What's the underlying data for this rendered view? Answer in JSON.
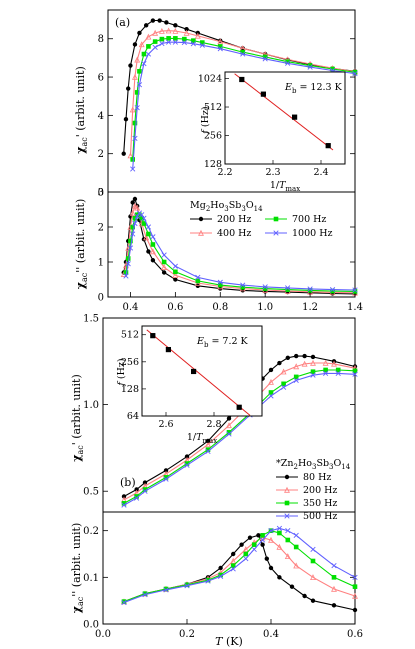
{
  "chart_data": [
    {
      "id": "p1",
      "type": "scatter",
      "panel_label": "(a)",
      "ylabel_main": "χ",
      "ylabel_sub": "ac",
      "ylabel_suffix": "' (arbit. unit)",
      "xlim": [
        0.3,
        1.4
      ],
      "ylim": [
        0,
        9.5
      ],
      "yticks": [
        "0",
        "2",
        "4",
        "6",
        "8"
      ],
      "ytick_values": [
        0,
        2,
        4,
        6,
        8
      ],
      "series": [
        {
          "name": "200 Hz",
          "color": "#000000",
          "marker": "circle-filled",
          "x": [
            0.37,
            0.38,
            0.39,
            0.4,
            0.42,
            0.44,
            0.47,
            0.5,
            0.53,
            0.56,
            0.6,
            0.65,
            0.7,
            0.8,
            0.9,
            1.0,
            1.1,
            1.2,
            1.3,
            1.4
          ],
          "y": [
            2.0,
            3.8,
            5.4,
            6.6,
            7.7,
            8.3,
            8.7,
            8.95,
            8.95,
            8.85,
            8.7,
            8.5,
            8.3,
            7.9,
            7.5,
            7.2,
            6.9,
            6.65,
            6.45,
            6.3
          ]
        },
        {
          "name": "400 Hz",
          "color": "#ff8080",
          "marker": "triangle-open",
          "x": [
            0.4,
            0.41,
            0.42,
            0.43,
            0.45,
            0.48,
            0.51,
            0.54,
            0.57,
            0.6,
            0.65,
            0.7,
            0.8,
            0.9,
            1.0,
            1.1,
            1.2,
            1.3,
            1.4
          ],
          "y": [
            1.9,
            4.3,
            6.0,
            6.9,
            7.7,
            8.1,
            8.3,
            8.4,
            8.42,
            8.4,
            8.3,
            8.15,
            7.85,
            7.5,
            7.2,
            6.92,
            6.68,
            6.46,
            6.28
          ]
        },
        {
          "name": "700 Hz",
          "color": "#00e000",
          "marker": "square-filled",
          "x": [
            0.41,
            0.42,
            0.43,
            0.44,
            0.46,
            0.48,
            0.51,
            0.54,
            0.57,
            0.6,
            0.64,
            0.68,
            0.72,
            0.8,
            0.9,
            1.0,
            1.1,
            1.2,
            1.3,
            1.4
          ],
          "y": [
            1.7,
            3.6,
            5.2,
            6.3,
            7.2,
            7.6,
            7.85,
            7.98,
            8.02,
            8.02,
            7.98,
            7.9,
            7.8,
            7.6,
            7.3,
            7.05,
            6.8,
            6.6,
            6.42,
            6.25
          ]
        },
        {
          "name": "1000 Hz",
          "color": "#6060ff",
          "marker": "x-open",
          "x": [
            0.41,
            0.42,
            0.43,
            0.44,
            0.46,
            0.48,
            0.51,
            0.54,
            0.57,
            0.6,
            0.64,
            0.68,
            0.72,
            0.8,
            0.9,
            1.0,
            1.1,
            1.2,
            1.3,
            1.4
          ],
          "y": [
            1.2,
            2.8,
            4.4,
            5.6,
            6.7,
            7.2,
            7.55,
            7.75,
            7.82,
            7.82,
            7.8,
            7.74,
            7.66,
            7.48,
            7.2,
            6.95,
            6.72,
            6.52,
            6.34,
            6.18
          ]
        }
      ]
    },
    {
      "id": "p1_inset",
      "type": "scatter",
      "label_E_main": "E",
      "label_E_sub": "b",
      "label_E_value": " = 12.3 K",
      "ylabel_italic": "f",
      "ylabel_unit": " (Hz)",
      "xlabel_main": "1/",
      "xlabel_italic": "T",
      "xlabel_sub": "max",
      "xlim": [
        2.2,
        2.45
      ],
      "ylog": true,
      "ylim": [
        128,
        1200
      ],
      "xticks": [
        "2.2",
        "2.3",
        "2.4"
      ],
      "xtick_values": [
        2.2,
        2.3,
        2.4
      ],
      "yticks": [
        "128",
        "256",
        "512",
        "1024"
      ],
      "ytick_values": [
        128,
        256,
        512,
        1024
      ],
      "points": {
        "x": [
          2.235,
          2.28,
          2.345,
          2.415
        ],
        "y": [
          1000,
          700,
          400,
          200
        ]
      },
      "fit": {
        "x": [
          2.22,
          2.425
        ],
        "y": [
          1150,
          180
        ],
        "color": "#e02020"
      }
    },
    {
      "id": "p2",
      "type": "scatter",
      "ylabel_main": "χ",
      "ylabel_sub": "ac",
      "ylabel_suffix": "'' (arbit. unit)",
      "xlim": [
        0.3,
        1.4
      ],
      "ylim": [
        0,
        3
      ],
      "xticks": [
        "0.4",
        "0.6",
        "0.8",
        "1.0",
        "1.2",
        "1.4"
      ],
      "xtick_values": [
        0.4,
        0.6,
        0.8,
        1.0,
        1.2,
        1.4
      ],
      "yticks": [
        "0",
        "1",
        "2",
        "3"
      ],
      "ytick_values": [
        0,
        1,
        2,
        3
      ],
      "legend_title_pre": "Mg",
      "legend_title_sub1": "2",
      "legend_title_mid1": "Ho",
      "legend_title_sub2": "3",
      "legend_title_mid2": "Sb",
      "legend_title_sub3": "3",
      "legend_title_mid3": "O",
      "legend_title_sub4": "14",
      "series": [
        {
          "name": "200 Hz",
          "color": "#000000",
          "marker": "circle-filled",
          "x": [
            0.37,
            0.38,
            0.39,
            0.4,
            0.41,
            0.42,
            0.43,
            0.44,
            0.46,
            0.48,
            0.5,
            0.55,
            0.6,
            0.7,
            0.8,
            0.9,
            1.0,
            1.1,
            1.2,
            1.3,
            1.4
          ],
          "y": [
            0.7,
            1.0,
            1.6,
            2.3,
            2.7,
            2.8,
            2.6,
            2.2,
            1.65,
            1.3,
            1.05,
            0.7,
            0.5,
            0.32,
            0.24,
            0.19,
            0.16,
            0.14,
            0.12,
            0.1,
            0.09
          ]
        },
        {
          "name": "400 Hz",
          "color": "#ff8080",
          "marker": "triangle-open",
          "x": [
            0.37,
            0.38,
            0.39,
            0.4,
            0.41,
            0.42,
            0.43,
            0.44,
            0.45,
            0.47,
            0.5,
            0.55,
            0.6,
            0.7,
            0.8,
            0.9,
            1.0,
            1.1,
            1.2,
            1.3,
            1.4
          ],
          "y": [
            0.65,
            0.9,
            1.4,
            2.0,
            2.4,
            2.6,
            2.55,
            2.35,
            2.1,
            1.7,
            1.3,
            0.85,
            0.62,
            0.4,
            0.3,
            0.24,
            0.2,
            0.17,
            0.15,
            0.13,
            0.12
          ]
        },
        {
          "name": "700 Hz",
          "color": "#00e000",
          "marker": "square-filled",
          "x": [
            0.38,
            0.39,
            0.4,
            0.41,
            0.42,
            0.43,
            0.44,
            0.45,
            0.46,
            0.48,
            0.5,
            0.55,
            0.6,
            0.7,
            0.8,
            0.9,
            1.0,
            1.1,
            1.2,
            1.3,
            1.4
          ],
          "y": [
            0.7,
            1.1,
            1.6,
            2.0,
            2.25,
            2.35,
            2.35,
            2.25,
            2.1,
            1.8,
            1.5,
            1.0,
            0.72,
            0.46,
            0.34,
            0.28,
            0.24,
            0.21,
            0.19,
            0.17,
            0.16
          ]
        },
        {
          "name": "1000 Hz",
          "color": "#6060ff",
          "marker": "x-open",
          "x": [
            0.38,
            0.39,
            0.4,
            0.41,
            0.42,
            0.43,
            0.44,
            0.45,
            0.46,
            0.48,
            0.5,
            0.55,
            0.6,
            0.7,
            0.8,
            0.9,
            1.0,
            1.1,
            1.2,
            1.3,
            1.4
          ],
          "y": [
            0.6,
            0.95,
            1.4,
            1.8,
            2.1,
            2.3,
            2.4,
            2.35,
            2.25,
            2.0,
            1.72,
            1.2,
            0.88,
            0.56,
            0.42,
            0.34,
            0.29,
            0.26,
            0.23,
            0.21,
            0.2
          ]
        }
      ]
    },
    {
      "id": "p3",
      "type": "scatter",
      "panel_label": "(b)",
      "ylabel_main": "χ",
      "ylabel_sub": "ac",
      "ylabel_suffix": "' (arbit. unit)",
      "xlim": [
        0,
        0.6
      ],
      "ylim": [
        0.38,
        1.5
      ],
      "yticks": [
        "0.5",
        "1.0",
        "1.5"
      ],
      "ytick_values": [
        0.5,
        1.0,
        1.5
      ],
      "legend_title_pre": "*Zn",
      "legend_title_sub1": "2",
      "legend_title_mid1": "Ho",
      "legend_title_sub2": "3",
      "legend_title_mid2": "Sb",
      "legend_title_sub3": "3",
      "legend_title_mid3": "O",
      "legend_title_sub4": "14",
      "series": [
        {
          "name": "80 Hz",
          "color": "#000000",
          "marker": "circle-filled",
          "x": [
            0.05,
            0.08,
            0.1,
            0.15,
            0.2,
            0.25,
            0.3,
            0.35,
            0.38,
            0.4,
            0.42,
            0.44,
            0.46,
            0.48,
            0.5,
            0.55,
            0.6
          ],
          "y": [
            0.47,
            0.51,
            0.55,
            0.62,
            0.7,
            0.79,
            0.92,
            1.07,
            1.15,
            1.2,
            1.24,
            1.27,
            1.28,
            1.28,
            1.275,
            1.25,
            1.22
          ]
        },
        {
          "name": "200 Hz",
          "color": "#ff8080",
          "marker": "triangle-open",
          "x": [
            0.05,
            0.08,
            0.1,
            0.15,
            0.2,
            0.25,
            0.3,
            0.35,
            0.4,
            0.43,
            0.46,
            0.48,
            0.5,
            0.53,
            0.55,
            0.6
          ],
          "y": [
            0.45,
            0.49,
            0.53,
            0.6,
            0.68,
            0.77,
            0.88,
            1.0,
            1.13,
            1.19,
            1.22,
            1.235,
            1.24,
            1.24,
            1.235,
            1.21
          ]
        },
        {
          "name": "350 Hz",
          "color": "#00e000",
          "marker": "square-filled",
          "x": [
            0.05,
            0.08,
            0.1,
            0.15,
            0.2,
            0.25,
            0.3,
            0.35,
            0.4,
            0.43,
            0.46,
            0.5,
            0.53,
            0.56,
            0.6
          ],
          "y": [
            0.43,
            0.47,
            0.51,
            0.58,
            0.66,
            0.74,
            0.84,
            0.95,
            1.07,
            1.12,
            1.16,
            1.19,
            1.2,
            1.2,
            1.195
          ]
        },
        {
          "name": "500 Hz",
          "color": "#6060ff",
          "marker": "x-open",
          "x": [
            0.05,
            0.08,
            0.1,
            0.15,
            0.2,
            0.25,
            0.3,
            0.35,
            0.4,
            0.43,
            0.46,
            0.5,
            0.53,
            0.56,
            0.6
          ],
          "y": [
            0.42,
            0.46,
            0.5,
            0.57,
            0.65,
            0.73,
            0.83,
            0.94,
            1.05,
            1.1,
            1.14,
            1.17,
            1.18,
            1.18,
            1.175
          ]
        }
      ]
    },
    {
      "id": "p3_inset",
      "type": "scatter",
      "label_E_main": "E",
      "label_E_sub": "b",
      "label_E_value": " = 7.2 K",
      "ylabel_italic": "f",
      "ylabel_unit": " (Hz)",
      "xlabel_main": "1/",
      "xlabel_italic": "T",
      "xlabel_sub": "max",
      "xlim": [
        2.5,
        3.0
      ],
      "ylog": true,
      "ylim": [
        64,
        640
      ],
      "xticks": [
        "2.6",
        "2.8"
      ],
      "xtick_values": [
        2.6,
        2.8
      ],
      "yticks": [
        "64",
        "128",
        "256",
        "512"
      ],
      "ytick_values": [
        64,
        128,
        256,
        512
      ],
      "points": {
        "x": [
          2.545,
          2.61,
          2.715,
          2.905
        ],
        "y": [
          500,
          350,
          200,
          80
        ]
      },
      "fit": {
        "x": [
          2.52,
          2.95
        ],
        "y": [
          580,
          65
        ],
        "color": "#e02020"
      }
    },
    {
      "id": "p4",
      "type": "scatter",
      "ylabel_main": "χ",
      "ylabel_sub": "ac",
      "ylabel_suffix": "'' (arbit. unit)",
      "xlim": [
        0,
        0.6
      ],
      "ylim": [
        0,
        0.24
      ],
      "xticks": [
        "0.0",
        "0.2",
        "0.4",
        "0.6"
      ],
      "xtick_values": [
        0,
        0.2,
        0.4,
        0.6
      ],
      "yticks": [
        "0.0",
        "0.1",
        "0.2"
      ],
      "ytick_values": [
        0,
        0.1,
        0.2
      ],
      "xlabel_italic": "T",
      "xlabel_unit": " (K)",
      "series": [
        {
          "name": "80 Hz",
          "color": "#000000",
          "marker": "circle-filled",
          "x": [
            0.05,
            0.1,
            0.15,
            0.2,
            0.25,
            0.28,
            0.31,
            0.33,
            0.35,
            0.37,
            0.38,
            0.39,
            0.4,
            0.42,
            0.45,
            0.48,
            0.5,
            0.55,
            0.6
          ],
          "y": [
            0.048,
            0.065,
            0.075,
            0.085,
            0.1,
            0.12,
            0.15,
            0.17,
            0.185,
            0.19,
            0.17,
            0.14,
            0.12,
            0.1,
            0.08,
            0.06,
            0.05,
            0.04,
            0.03
          ]
        },
        {
          "name": "200 Hz",
          "color": "#ff8080",
          "marker": "triangle-open",
          "x": [
            0.05,
            0.1,
            0.15,
            0.2,
            0.25,
            0.28,
            0.31,
            0.34,
            0.36,
            0.38,
            0.4,
            0.42,
            0.44,
            0.46,
            0.5,
            0.55,
            0.6
          ],
          "y": [
            0.048,
            0.065,
            0.075,
            0.085,
            0.097,
            0.11,
            0.135,
            0.16,
            0.175,
            0.185,
            0.18,
            0.165,
            0.145,
            0.125,
            0.1,
            0.075,
            0.06
          ]
        },
        {
          "name": "350 Hz",
          "color": "#00e000",
          "marker": "square-filled",
          "x": [
            0.05,
            0.1,
            0.15,
            0.2,
            0.25,
            0.28,
            0.31,
            0.34,
            0.36,
            0.38,
            0.4,
            0.42,
            0.44,
            0.46,
            0.5,
            0.55,
            0.6
          ],
          "y": [
            0.048,
            0.065,
            0.075,
            0.084,
            0.094,
            0.105,
            0.125,
            0.15,
            0.17,
            0.19,
            0.2,
            0.195,
            0.18,
            0.165,
            0.135,
            0.1,
            0.08
          ]
        },
        {
          "name": "500 Hz",
          "color": "#6060ff",
          "marker": "x-open",
          "x": [
            0.05,
            0.1,
            0.15,
            0.2,
            0.25,
            0.28,
            0.31,
            0.34,
            0.36,
            0.38,
            0.4,
            0.42,
            0.44,
            0.46,
            0.5,
            0.55,
            0.6
          ],
          "y": [
            0.046,
            0.063,
            0.073,
            0.082,
            0.092,
            0.102,
            0.118,
            0.14,
            0.16,
            0.18,
            0.2,
            0.205,
            0.2,
            0.19,
            0.16,
            0.125,
            0.1
          ]
        }
      ]
    }
  ]
}
